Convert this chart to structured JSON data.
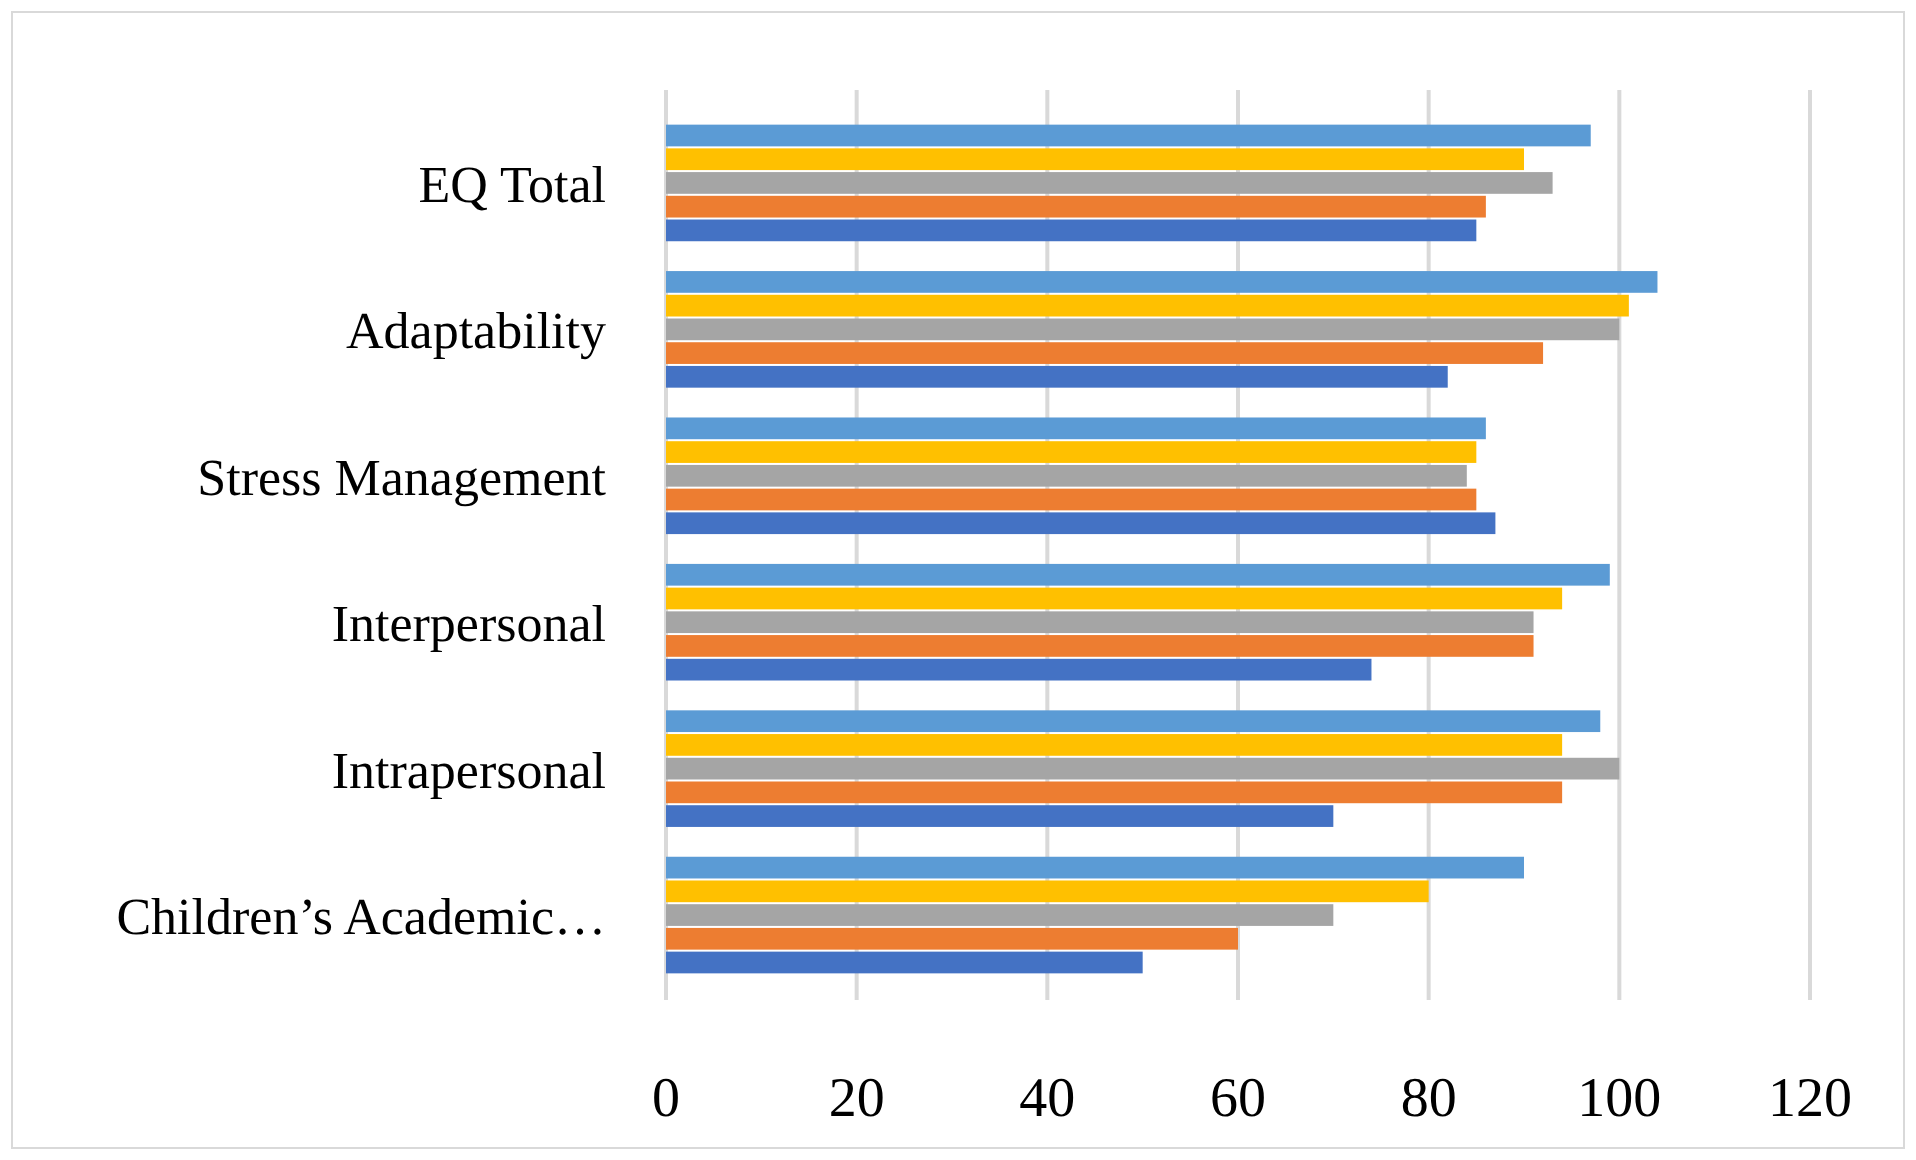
{
  "chart_data": {
    "type": "bar",
    "orientation": "horizontal",
    "categories": [
      "EQ Total",
      "Adaptability",
      "Stress Management",
      "Interpersonal",
      "Intrapersonal",
      "Children’s Academic…"
    ],
    "series": [
      {
        "color": "#4472c4",
        "values": [
          85,
          82,
          87,
          74,
          70,
          50
        ]
      },
      {
        "color": "#ed7d31",
        "values": [
          86,
          92,
          85,
          91,
          94,
          60
        ]
      },
      {
        "color": "#a5a5a5",
        "values": [
          93,
          100,
          84,
          91,
          100,
          70
        ]
      },
      {
        "color": "#ffc000",
        "values": [
          90,
          101,
          85,
          94,
          94,
          80
        ]
      },
      {
        "color": "#5b9bd5",
        "values": [
          97,
          104,
          86,
          99,
          98,
          90
        ]
      }
    ],
    "xlim": [
      0,
      120
    ],
    "xticks": [
      0,
      20,
      40,
      60,
      80,
      100,
      120
    ],
    "grid": "x"
  }
}
